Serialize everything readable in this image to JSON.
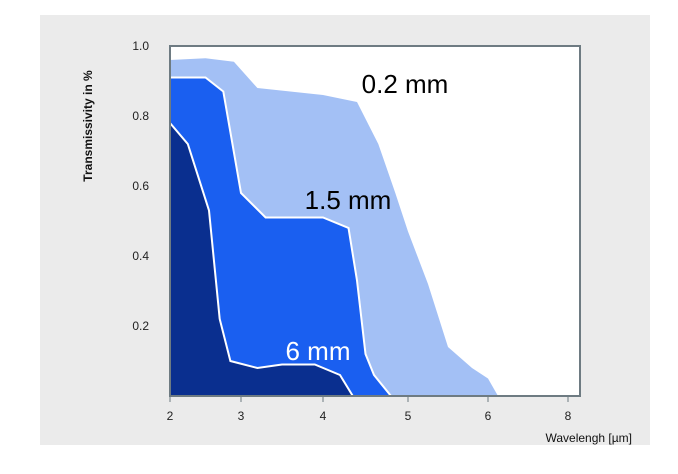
{
  "chart_data": {
    "type": "area",
    "title": "",
    "xlabel": "Wavelengh [µm]",
    "ylabel": "Transmissivity in %",
    "x_ticks": [
      "2",
      "3",
      "4",
      "5",
      "6",
      "8"
    ],
    "y_ticks": [
      "1.0",
      "0.8",
      "0.6",
      "0.4",
      "0.2"
    ],
    "ylim": [
      0,
      1.0
    ],
    "grid": false,
    "series": [
      {
        "name": "0.2 mm",
        "color": "#a3c0f5",
        "points": [
          [
            2.0,
            0.96
          ],
          [
            2.5,
            0.965
          ],
          [
            2.9,
            0.955
          ],
          [
            3.2,
            0.88
          ],
          [
            3.6,
            0.87
          ],
          [
            4.0,
            0.86
          ],
          [
            4.4,
            0.84
          ],
          [
            4.65,
            0.72
          ],
          [
            4.85,
            0.58
          ],
          [
            5.0,
            0.47
          ],
          [
            5.25,
            0.32
          ],
          [
            5.5,
            0.14
          ],
          [
            5.8,
            0.08
          ],
          [
            6.0,
            0.05
          ],
          [
            6.25,
            0.0
          ]
        ]
      },
      {
        "name": "1.5 mm",
        "color": "#1a5ff0",
        "points": [
          [
            2.0,
            0.91
          ],
          [
            2.5,
            0.91
          ],
          [
            2.75,
            0.87
          ],
          [
            3.0,
            0.58
          ],
          [
            3.3,
            0.51
          ],
          [
            3.7,
            0.51
          ],
          [
            4.0,
            0.51
          ],
          [
            4.3,
            0.48
          ],
          [
            4.4,
            0.33
          ],
          [
            4.5,
            0.12
          ],
          [
            4.6,
            0.06
          ],
          [
            4.8,
            0.0
          ]
        ]
      },
      {
        "name": "6 mm",
        "color": "#0a2f8f",
        "points": [
          [
            2.0,
            0.78
          ],
          [
            2.25,
            0.72
          ],
          [
            2.55,
            0.53
          ],
          [
            2.7,
            0.22
          ],
          [
            2.85,
            0.1
          ],
          [
            3.2,
            0.08
          ],
          [
            3.5,
            0.09
          ],
          [
            3.9,
            0.09
          ],
          [
            4.2,
            0.06
          ],
          [
            4.35,
            0.0
          ]
        ]
      }
    ],
    "labels": [
      {
        "text": "0.2 mm",
        "color": "#000000"
      },
      {
        "text": "1.5 mm",
        "color": "#000000"
      },
      {
        "text": "6 mm",
        "color": "#ffffff"
      }
    ]
  }
}
